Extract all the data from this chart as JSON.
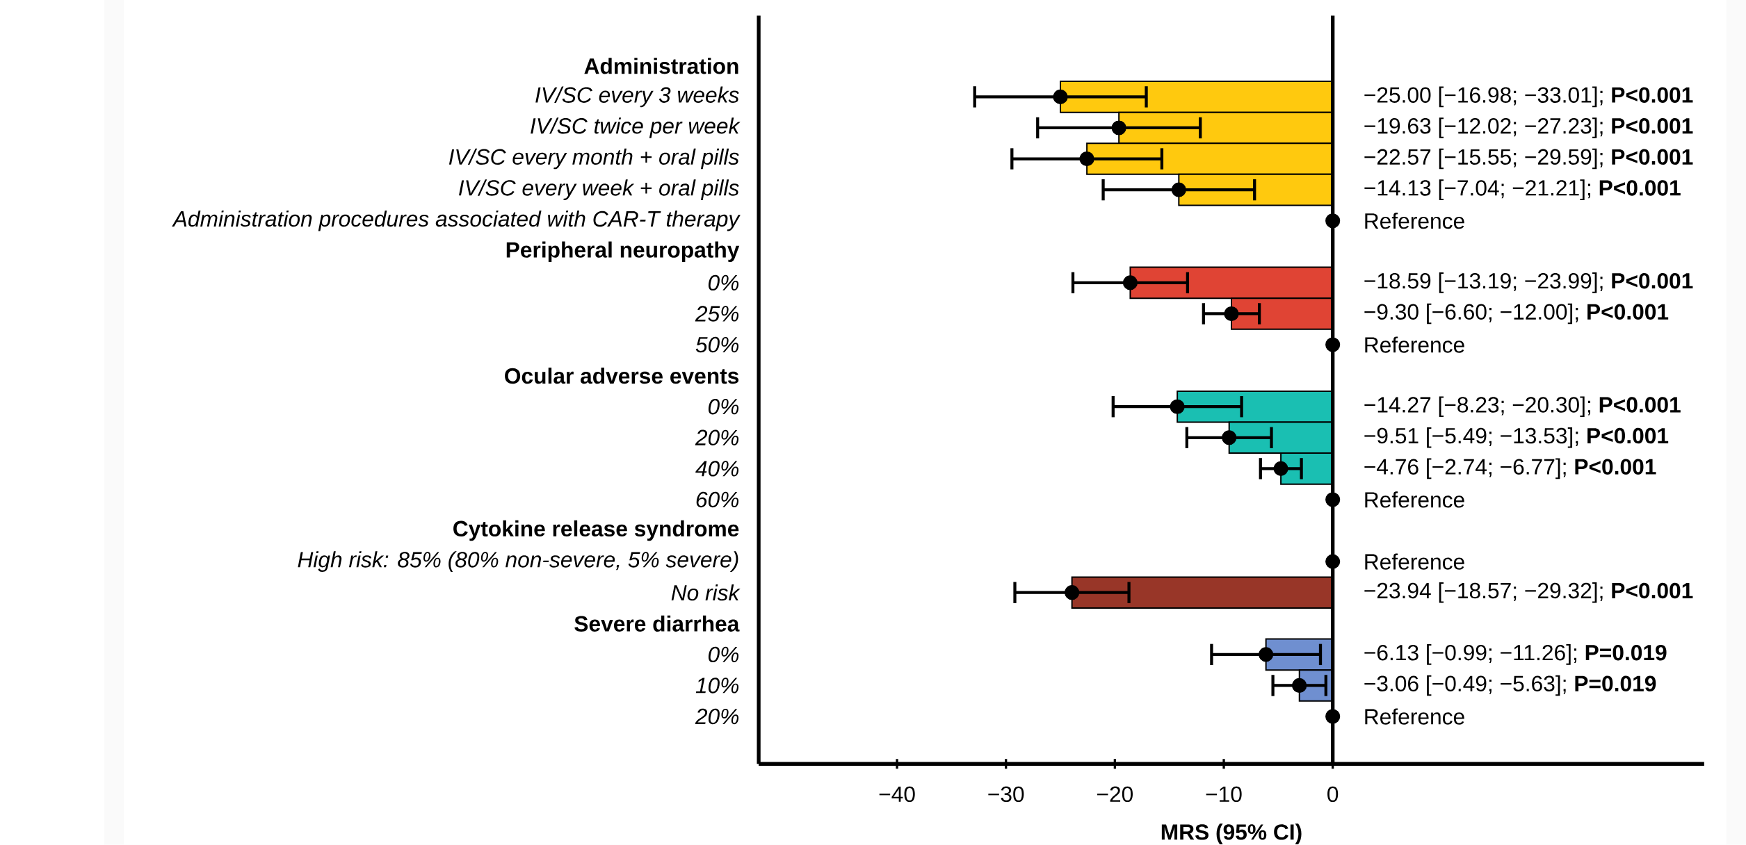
{
  "chart_data": {
    "type": "bar",
    "orientation": "horizontal",
    "xlabel": "MRS (95% CI)",
    "categories": [
      "Administration",
      "IV/SC every 3 weeks",
      "IV/SC twice per week",
      "IV/SC every month + oral pills",
      "IV/SC every week + oral pills",
      "Administration procedures associated with CAR-T therapy",
      "Peripheral neuropathy",
      "0%",
      "25%",
      "50%",
      "Ocular adverse events",
      "0%",
      "20%",
      "40%",
      "60%",
      "Cytokine release syndrome",
      "High risk: 85% (80% non-severe, 5% severe)",
      "No risk",
      "Severe diarrhea",
      "0%",
      "10%",
      "20%"
    ],
    "values": [
      null,
      -25.0,
      -19.63,
      -22.57,
      -14.13,
      0,
      null,
      -18.59,
      -9.3,
      0,
      null,
      -14.27,
      -9.51,
      -4.76,
      0,
      null,
      0,
      -23.94,
      null,
      -6.13,
      -3.06,
      0
    ],
    "colors": [
      null,
      "#ffc90e",
      "#ffc90e",
      "#ffc90e",
      "#ffc90e",
      "#ffc90e",
      null,
      "#e04434",
      "#e04434",
      "#e04434",
      null,
      "#1abfb2",
      "#1abfb2",
      "#1abfb2",
      "#1abfb2",
      null,
      "#983628",
      "#983628",
      null,
      "#6f8fd0",
      "#6f8fd0",
      "#6f8fd0"
    ],
    "errors": [
      null,
      [
        -33.01,
        -16.98
      ],
      [
        -27.23,
        -12.02
      ],
      [
        -29.59,
        -15.55
      ],
      [
        -21.21,
        -7.04
      ],
      null,
      null,
      [
        -23.99,
        -13.19
      ],
      [
        -12.0,
        -6.6
      ],
      null,
      null,
      [
        -20.3,
        -8.23
      ],
      [
        -13.53,
        -5.49
      ],
      [
        -6.77,
        -2.74
      ],
      null,
      null,
      null,
      [
        -29.32,
        -18.57
      ],
      null,
      [
        -11.26,
        -0.99
      ],
      [
        -5.63,
        -0.49
      ],
      null
    ],
    "value_labels": [
      null,
      "−25.00 [−16.98; −33.01]; **P<0.001**",
      "−19.63 [−12.02; −27.23]; **P<0.001**",
      "−22.57 [−15.55; −29.59]; **P<0.001**",
      "−14.13 [−7.04; −21.21]; **P<0.001**",
      "Reference",
      null,
      "−18.59 [−13.19; −23.99]; **P<0.001**",
      "−9.30 [−6.60; −12.00]; **P<0.001**",
      "Reference",
      null,
      "−14.27 [−8.23; −20.30]; **P<0.001**",
      "−9.51 [−5.49; −13.53]; **P<0.001**",
      "−4.76 [−2.74; −6.77]; **P<0.001**",
      "Reference",
      null,
      "Reference",
      "−23.94 [−18.57; −29.32]; **P<0.001**",
      null,
      "−6.13 [−0.99; −11.26]; **P=0.019**",
      "−3.06 [−0.49; −5.63]; **P=0.019**",
      "Reference"
    ],
    "xlim": [
      -52.7,
      34.1
    ],
    "xticks": [
      {
        "value": -40,
        "label": "−40"
      },
      {
        "value": -30,
        "label": "−30"
      },
      {
        "value": -20,
        "label": "−20"
      },
      {
        "value": -10,
        "label": "−10"
      },
      {
        "value": 0,
        "label": "0"
      }
    ],
    "ref_lines": [
      {
        "axis": "x",
        "value": 0
      }
    ],
    "series": [
      {
        "type": "scatter",
        "color": "#000000",
        "marker": "circle",
        "values": [
          null,
          -25.0,
          -19.63,
          -22.57,
          -14.13,
          0,
          null,
          -18.59,
          -9.3,
          0,
          null,
          -14.27,
          -9.51,
          -4.76,
          0,
          null,
          0,
          -23.94,
          null,
          -6.13,
          -3.06,
          0
        ]
      }
    ],
    "grid": false
  }
}
